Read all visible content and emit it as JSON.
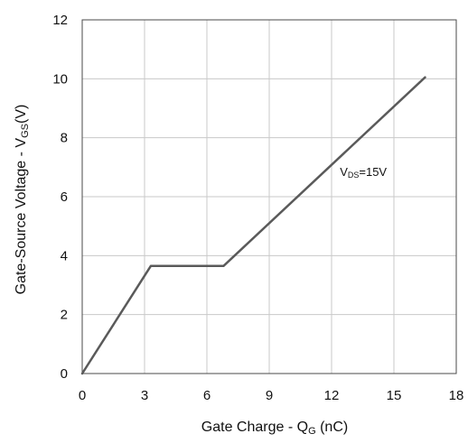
{
  "chart_data": {
    "type": "line",
    "xlabel": {
      "main": "Gate Charge - Q",
      "sub": "G",
      "unit": " (nC)"
    },
    "ylabel": {
      "main": "Gate-Source Voltage - V",
      "sub": "GS",
      "unit": "(V)"
    },
    "xlim": [
      0,
      18
    ],
    "ylim": [
      0,
      12
    ],
    "xticks": [
      0,
      3,
      6,
      9,
      12,
      15,
      18
    ],
    "yticks": [
      0,
      2,
      4,
      6,
      8,
      10,
      12
    ],
    "grid": true,
    "series": [
      {
        "color": "#5a5a5a",
        "points": [
          [
            0,
            0
          ],
          [
            3.3,
            3.65
          ],
          [
            6.8,
            3.65
          ],
          [
            16.5,
            10.05
          ]
        ]
      }
    ],
    "annotations": [
      {
        "main": "V",
        "sub": "DS",
        "rest": "=15V",
        "x": 12.4,
        "y": 6.7
      }
    ]
  }
}
